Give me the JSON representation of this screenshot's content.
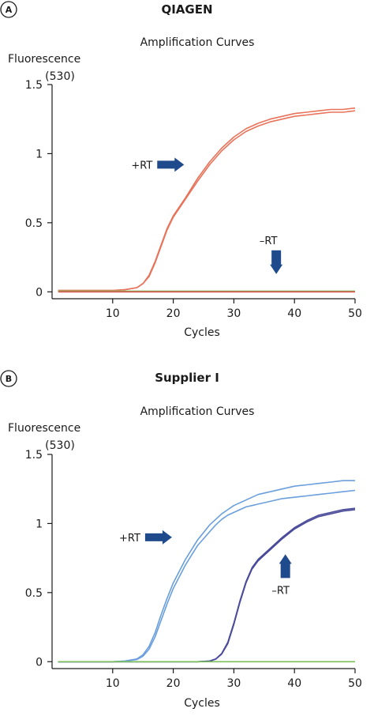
{
  "chart_data": [
    {
      "type": "line",
      "panel_label": "A",
      "title": "QIAGEN",
      "subtitle": "Amplification Curves",
      "ylabel": "Fluorescence",
      "ylabel_unit": "(530)",
      "xlabel": "Cycles",
      "xlim": [
        0,
        50
      ],
      "ylim": [
        -0.05,
        1.5
      ],
      "x_ticks": [
        10,
        20,
        30,
        40,
        50
      ],
      "y_ticks": [
        0,
        0.5,
        1,
        1.5
      ],
      "y_tick_labels": [
        "0",
        "0.5",
        "1",
        "1.5"
      ],
      "grid": false,
      "x": [
        1,
        5,
        10,
        12,
        14,
        15,
        16,
        17,
        18,
        19,
        20,
        22,
        24,
        26,
        28,
        30,
        32,
        34,
        36,
        38,
        40,
        42,
        44,
        46,
        48,
        50
      ],
      "series": [
        {
          "color": "#e8735a",
          "values": [
            0.01,
            0.01,
            0.01,
            0.015,
            0.03,
            0.06,
            0.12,
            0.22,
            0.34,
            0.46,
            0.55,
            0.68,
            0.82,
            0.94,
            1.04,
            1.12,
            1.18,
            1.22,
            1.25,
            1.27,
            1.29,
            1.3,
            1.31,
            1.32,
            1.32,
            1.33
          ]
        },
        {
          "color": "#e8735a",
          "values": [
            0.01,
            0.01,
            0.01,
            0.015,
            0.03,
            0.06,
            0.11,
            0.21,
            0.33,
            0.45,
            0.54,
            0.67,
            0.8,
            0.92,
            1.02,
            1.1,
            1.16,
            1.2,
            1.23,
            1.25,
            1.27,
            1.28,
            1.29,
            1.3,
            1.3,
            1.31
          ]
        },
        {
          "color": "#7bbf5a",
          "values": [
            0.005,
            0.005,
            0.005,
            0.005,
            0.005,
            0.005,
            0.005,
            0.005,
            0.005,
            0.005,
            0.005,
            0.005,
            0.005,
            0.005,
            0.005,
            0.005,
            0.005,
            0.005,
            0.005,
            0.005,
            0.005,
            0.005,
            0.005,
            0.005,
            0.005,
            0.005
          ]
        },
        {
          "color": "#d9534f",
          "values": [
            0.0,
            0.0,
            0.0,
            0.0,
            0.0,
            0.0,
            0.0,
            0.0,
            0.0,
            0.0,
            0.0,
            0.0,
            0.0,
            0.0,
            0.0,
            0.0,
            0.0,
            0.0,
            0.0,
            0.0,
            0.0,
            0.0,
            0.0,
            0.0,
            0.0,
            0.0
          ]
        }
      ],
      "annotations": [
        {
          "text": "+RT",
          "direction": "right",
          "x": 21,
          "y": 0.92
        },
        {
          "text": "–RT",
          "direction": "down",
          "x": 37,
          "y": 0.14
        }
      ]
    },
    {
      "type": "line",
      "panel_label": "B",
      "title": "Supplier I",
      "subtitle": "Amplification Curves",
      "ylabel": "Fluorescence",
      "ylabel_unit": "(530)",
      "xlabel": "Cycles",
      "xlim": [
        0,
        50
      ],
      "ylim": [
        -0.05,
        1.5
      ],
      "x_ticks": [
        10,
        20,
        30,
        40,
        50
      ],
      "y_ticks": [
        0,
        0.5,
        1,
        1.5
      ],
      "y_tick_labels": [
        "0",
        "0.5",
        "1",
        "1.5"
      ],
      "grid": false,
      "x": [
        1,
        5,
        10,
        12,
        14,
        15,
        16,
        17,
        18,
        19,
        20,
        22,
        24,
        26,
        27,
        28,
        29,
        30,
        31,
        32,
        33,
        34,
        36,
        38,
        40,
        42,
        44,
        46,
        48,
        50
      ],
      "series": [
        {
          "color": "#6a9fdc",
          "values": [
            0.0,
            0.0,
            0.0,
            0.005,
            0.02,
            0.05,
            0.11,
            0.21,
            0.34,
            0.46,
            0.57,
            0.74,
            0.88,
            0.99,
            1.03,
            1.07,
            1.1,
            1.13,
            1.15,
            1.17,
            1.19,
            1.21,
            1.23,
            1.25,
            1.27,
            1.28,
            1.29,
            1.3,
            1.31,
            1.31
          ]
        },
        {
          "color": "#6a9fdc",
          "values": [
            0.0,
            0.0,
            0.0,
            0.004,
            0.015,
            0.04,
            0.09,
            0.18,
            0.3,
            0.42,
            0.53,
            0.7,
            0.84,
            0.94,
            0.99,
            1.03,
            1.06,
            1.08,
            1.1,
            1.12,
            1.13,
            1.14,
            1.16,
            1.18,
            1.19,
            1.2,
            1.21,
            1.22,
            1.23,
            1.24
          ]
        },
        {
          "color": "#4a4a9a",
          "values": [
            0.0,
            0.0,
            0.0,
            0.0,
            0.0,
            0.0,
            0.0,
            0.0,
            0.0,
            0.0,
            0.0,
            0.0,
            0.0,
            0.005,
            0.02,
            0.06,
            0.14,
            0.28,
            0.44,
            0.58,
            0.68,
            0.74,
            0.82,
            0.9,
            0.97,
            1.02,
            1.06,
            1.08,
            1.1,
            1.11
          ]
        },
        {
          "color": "#4a4a9a",
          "values": [
            0.0,
            0.0,
            0.0,
            0.0,
            0.0,
            0.0,
            0.0,
            0.0,
            0.0,
            0.0,
            0.0,
            0.0,
            0.0,
            0.004,
            0.018,
            0.055,
            0.13,
            0.27,
            0.43,
            0.57,
            0.67,
            0.73,
            0.81,
            0.89,
            0.96,
            1.01,
            1.05,
            1.07,
            1.09,
            1.1
          ]
        },
        {
          "color": "#7bbf5a",
          "values": [
            0.0,
            0.0,
            0.0,
            0.0,
            0.0,
            0.0,
            0.0,
            0.0,
            0.0,
            0.0,
            0.0,
            0.0,
            0.0,
            0.0,
            0.0,
            0.0,
            0.0,
            0.0,
            0.0,
            0.0,
            0.0,
            0.0,
            0.0,
            0.0,
            0.0,
            0.0,
            0.0,
            0.0,
            0.0,
            0.0
          ]
        }
      ],
      "annotations": [
        {
          "text": "+RT",
          "direction": "right",
          "x": 19,
          "y": 0.9
        },
        {
          "text": "–RT",
          "direction": "up",
          "x": 38.5,
          "y": 0.72
        }
      ]
    }
  ],
  "colors": {
    "arrow": "#1f4a8c",
    "axis": "#1a1a1a",
    "badge_fill": "#ffffff"
  }
}
